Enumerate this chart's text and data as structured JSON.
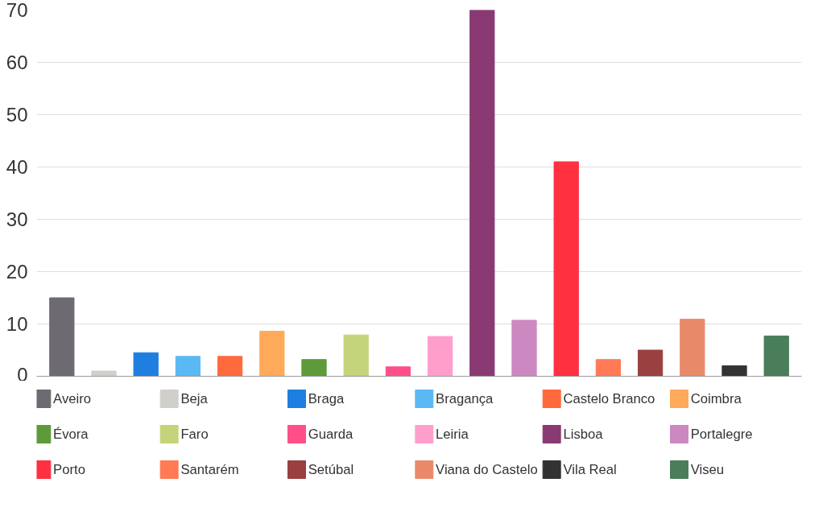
{
  "chart_data": {
    "type": "bar",
    "categories": [
      null,
      null,
      null,
      null,
      null,
      null,
      null,
      null,
      null,
      null,
      null,
      null,
      null,
      null,
      null,
      null,
      null,
      null
    ],
    "series": [
      {
        "name": "Aveiro",
        "color": "#6e6a72",
        "values": [
          15,
          null,
          null,
          null,
          null,
          null,
          null,
          null,
          null,
          null,
          null,
          null,
          null,
          null,
          null,
          null,
          null,
          null
        ]
      },
      {
        "name": "Beja",
        "color": "#d0cfcc",
        "values": [
          null,
          1,
          null,
          null,
          null,
          null,
          null,
          null,
          null,
          null,
          null,
          null,
          null,
          null,
          null,
          null,
          null,
          null
        ]
      },
      {
        "name": "Braga",
        "color": "#1f7fe0",
        "values": [
          null,
          null,
          4.5,
          null,
          null,
          null,
          null,
          null,
          null,
          null,
          null,
          null,
          null,
          null,
          null,
          null,
          null,
          null
        ]
      },
      {
        "name": "Bragança",
        "color": "#5ab8f5",
        "values": [
          null,
          null,
          null,
          3.8,
          null,
          null,
          null,
          null,
          null,
          null,
          null,
          null,
          null,
          null,
          null,
          null,
          null,
          null
        ]
      },
      {
        "name": "Castelo Branco",
        "color": "#ff6a3d",
        "values": [
          null,
          null,
          null,
          null,
          3.8,
          null,
          null,
          null,
          null,
          null,
          null,
          null,
          null,
          null,
          null,
          null,
          null,
          null
        ]
      },
      {
        "name": "Coimbra",
        "color": "#ffaa5a",
        "values": [
          null,
          null,
          null,
          null,
          null,
          8.6,
          null,
          null,
          null,
          null,
          null,
          null,
          null,
          null,
          null,
          null,
          null,
          null
        ]
      },
      {
        "name": "Évora",
        "color": "#5e9a3a",
        "values": [
          null,
          null,
          null,
          null,
          null,
          null,
          3.2,
          null,
          null,
          null,
          null,
          null,
          null,
          null,
          null,
          null,
          null,
          null
        ]
      },
      {
        "name": "Faro",
        "color": "#c4d47a",
        "values": [
          null,
          null,
          null,
          null,
          null,
          null,
          null,
          7.9,
          null,
          null,
          null,
          null,
          null,
          null,
          null,
          null,
          null,
          null
        ]
      },
      {
        "name": "Guarda",
        "color": "#ff4f88",
        "values": [
          null,
          null,
          null,
          null,
          null,
          null,
          null,
          null,
          1.8,
          null,
          null,
          null,
          null,
          null,
          null,
          null,
          null,
          null
        ]
      },
      {
        "name": "Leiria",
        "color": "#ff9ecb",
        "values": [
          null,
          null,
          null,
          null,
          null,
          null,
          null,
          null,
          null,
          7.6,
          null,
          null,
          null,
          null,
          null,
          null,
          null,
          null
        ]
      },
      {
        "name": "Lisboa",
        "color": "#8a3a72",
        "values": [
          null,
          null,
          null,
          null,
          null,
          null,
          null,
          null,
          null,
          null,
          70,
          null,
          null,
          null,
          null,
          null,
          null,
          null
        ]
      },
      {
        "name": "Portalegre",
        "color": "#cc88c0",
        "values": [
          null,
          null,
          null,
          null,
          null,
          null,
          null,
          null,
          null,
          null,
          null,
          10.7,
          null,
          null,
          null,
          null,
          null,
          null
        ]
      },
      {
        "name": "Porto",
        "color": "#ff3040",
        "values": [
          null,
          null,
          null,
          null,
          null,
          null,
          null,
          null,
          null,
          null,
          null,
          null,
          41,
          null,
          null,
          null,
          null,
          null
        ]
      },
      {
        "name": "Santarém",
        "color": "#ff7a55",
        "values": [
          null,
          null,
          null,
          null,
          null,
          null,
          null,
          null,
          null,
          null,
          null,
          null,
          null,
          3.2,
          null,
          null,
          null,
          null
        ]
      },
      {
        "name": "Setúbal",
        "color": "#9a4040",
        "values": [
          null,
          null,
          null,
          null,
          null,
          null,
          null,
          null,
          null,
          null,
          null,
          null,
          null,
          null,
          5,
          null,
          null,
          null
        ]
      },
      {
        "name": "Viana do Castelo",
        "color": "#e88a6a",
        "values": [
          null,
          null,
          null,
          null,
          null,
          null,
          null,
          null,
          null,
          null,
          null,
          null,
          null,
          null,
          null,
          10.9,
          null,
          null
        ]
      },
      {
        "name": "Vila Real",
        "color": "#333333",
        "values": [
          null,
          null,
          null,
          null,
          null,
          null,
          null,
          null,
          null,
          null,
          null,
          null,
          null,
          null,
          null,
          null,
          2,
          null
        ]
      },
      {
        "name": "Viseu",
        "color": "#4a7d5a",
        "values": [
          null,
          null,
          null,
          null,
          null,
          null,
          null,
          null,
          null,
          null,
          null,
          null,
          null,
          null,
          null,
          null,
          null,
          7.7
        ]
      }
    ],
    "ylim": [
      0,
      70
    ],
    "yticks": [
      0,
      10,
      20,
      30,
      40,
      50,
      60,
      70
    ],
    "grid": "y",
    "legend": "bottom",
    "tick_labels": "y"
  }
}
